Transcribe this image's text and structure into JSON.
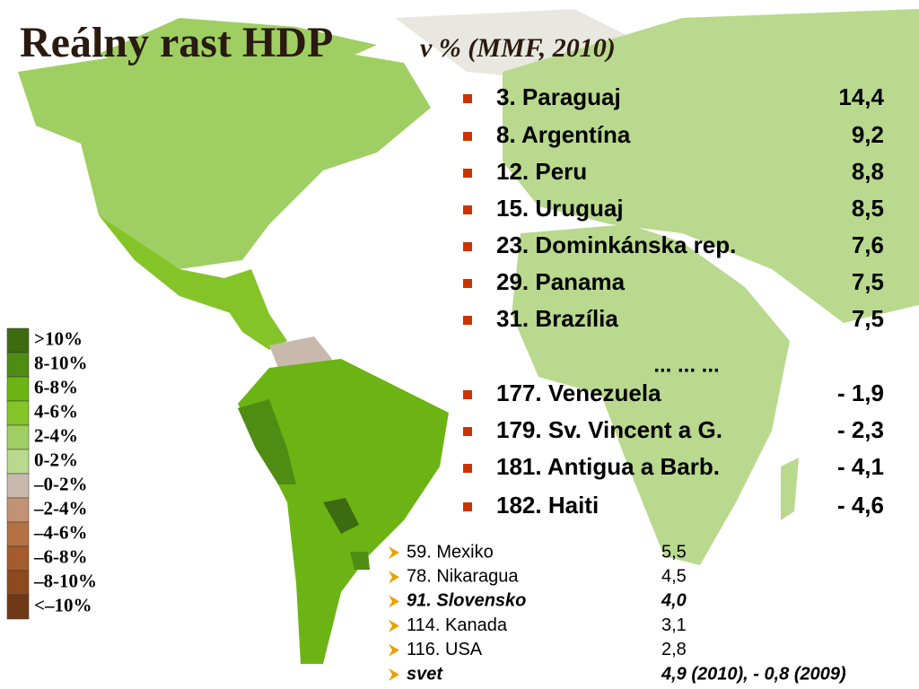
{
  "title": "Reálny rast HDP",
  "subtitle": "v % (MMF, 2010)",
  "ranking": [
    {
      "label": "3. Paraguaj",
      "value": "14,4"
    },
    {
      "label": "8. Argentína",
      "value": "9,2"
    },
    {
      "label": "12. Peru",
      "value": "8,8"
    },
    {
      "label": "15. Uruguaj",
      "value": "8,5"
    },
    {
      "label": "23. Dominkánska rep.",
      "value": "7,6"
    },
    {
      "label": "29. Panama",
      "value": "7,5"
    },
    {
      "label": "31. Brazília",
      "value": "7,5"
    },
    {
      "label": "... ... ...",
      "value": null
    },
    {
      "label": "177. Venezuela",
      "value": "- 1,9"
    },
    {
      "label": "179. Sv. Vincent a G.",
      "value": "- 2,3"
    },
    {
      "label": "181. Antigua a Barb.",
      "value": "- 4,1"
    },
    {
      "label": "182. Haiti",
      "value": "- 4,6"
    }
  ],
  "secondary_ranking": [
    {
      "label": "59. Mexiko",
      "value": "5,5",
      "emphasis": false
    },
    {
      "label": "78. Nikaragua",
      "value": "4,5",
      "emphasis": false
    },
    {
      "label": "91. Slovensko",
      "value": "4,0",
      "emphasis": true
    },
    {
      "label": "114. Kanada",
      "value": "3,1",
      "emphasis": false
    },
    {
      "label": "116. USA",
      "value": "2,8",
      "emphasis": false
    },
    {
      "label": "svet",
      "value": "4,9 (2010), - 0,8 (2009)",
      "emphasis": true
    }
  ],
  "legend": [
    {
      "label": ">10%",
      "color": "#3d6b10"
    },
    {
      "label": "8-10%",
      "color": "#4f8c14"
    },
    {
      "label": "6-8%",
      "color": "#6cb414"
    },
    {
      "label": "4-6%",
      "color": "#84c428"
    },
    {
      "label": "2-4%",
      "color": "#9fcf62"
    },
    {
      "label": "0-2%",
      "color": "#b9d98e"
    },
    {
      "label": "–0-2%",
      "color": "#c9b9ac"
    },
    {
      "label": "–2-4%",
      "color": "#c29274"
    },
    {
      "label": "–4-6%",
      "color": "#b47244"
    },
    {
      "label": "–6-8%",
      "color": "#a45c2c"
    },
    {
      "label": "–8-10%",
      "color": "#8e4a1e"
    },
    {
      "label": "<–10%",
      "color": "#6f3918"
    }
  ]
}
